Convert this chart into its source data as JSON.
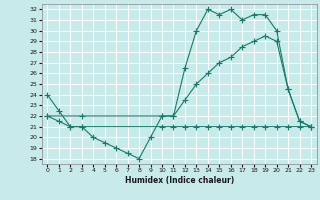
{
  "xlabel": "Humidex (Indice chaleur)",
  "ylabel": "",
  "bg_color": "#c8eaea",
  "grid_color": "#ffffff",
  "line_color": "#1a7a6a",
  "xlim": [
    -0.5,
    23.5
  ],
  "ylim": [
    17.5,
    32.5
  ],
  "yticks": [
    18,
    19,
    20,
    21,
    22,
    23,
    24,
    25,
    26,
    27,
    28,
    29,
    30,
    31,
    32
  ],
  "xticks": [
    0,
    1,
    2,
    3,
    4,
    5,
    6,
    7,
    8,
    9,
    10,
    11,
    12,
    13,
    14,
    15,
    16,
    17,
    18,
    19,
    20,
    21,
    22,
    23
  ],
  "series1_x": [
    0,
    1,
    2,
    3,
    4,
    5,
    6,
    7,
    8,
    9,
    10,
    11,
    12,
    13,
    14,
    15,
    16,
    17,
    18,
    19,
    20,
    21,
    22,
    23
  ],
  "series1_y": [
    24.0,
    22.5,
    21.0,
    21.0,
    20.0,
    19.5,
    19.0,
    18.5,
    18.0,
    20.0,
    22.0,
    22.0,
    26.5,
    30.0,
    32.0,
    31.5,
    32.0,
    31.0,
    31.5,
    31.5,
    30.0,
    24.5,
    21.5,
    21.0
  ],
  "series2_x": [
    0,
    3,
    10,
    11,
    12,
    13,
    14,
    15,
    16,
    17,
    18,
    19,
    20,
    21,
    22,
    23
  ],
  "series2_y": [
    22.0,
    22.0,
    22.0,
    22.0,
    23.5,
    25.0,
    26.0,
    27.0,
    27.5,
    28.5,
    29.0,
    29.5,
    29.0,
    24.5,
    21.5,
    21.0
  ],
  "series3_x": [
    0,
    1,
    2,
    3,
    10,
    11,
    12,
    13,
    14,
    15,
    16,
    17,
    18,
    19,
    20,
    21,
    22,
    23
  ],
  "series3_y": [
    22.0,
    21.5,
    21.0,
    21.0,
    21.0,
    21.0,
    21.0,
    21.0,
    21.0,
    21.0,
    21.0,
    21.0,
    21.0,
    21.0,
    21.0,
    21.0,
    21.0,
    21.0
  ]
}
